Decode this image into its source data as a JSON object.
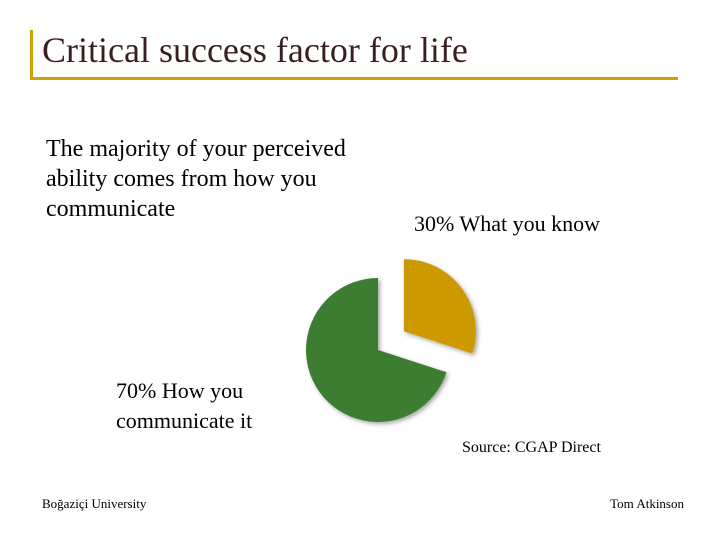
{
  "slide": {
    "title": "Critical success factor for life",
    "body": "The majority of your perceived ability comes from how you communicate",
    "source": "Source: CGAP Direct",
    "footer_left": "Boğaziçi University",
    "footer_right": "Tom Atkinson"
  },
  "chart_data": {
    "type": "pie",
    "title": "",
    "slices": [
      {
        "label_line1": "30% What you know",
        "label_line2": "",
        "value": 30,
        "color": "#cc9a00",
        "exploded": true
      },
      {
        "label_line1": "70% How you",
        "label_line2": "communicate it",
        "value": 70,
        "color": "#3c7d33",
        "exploded": false
      }
    ],
    "start_angle_deg": 0,
    "direction": "clockwise",
    "legend": "none"
  }
}
